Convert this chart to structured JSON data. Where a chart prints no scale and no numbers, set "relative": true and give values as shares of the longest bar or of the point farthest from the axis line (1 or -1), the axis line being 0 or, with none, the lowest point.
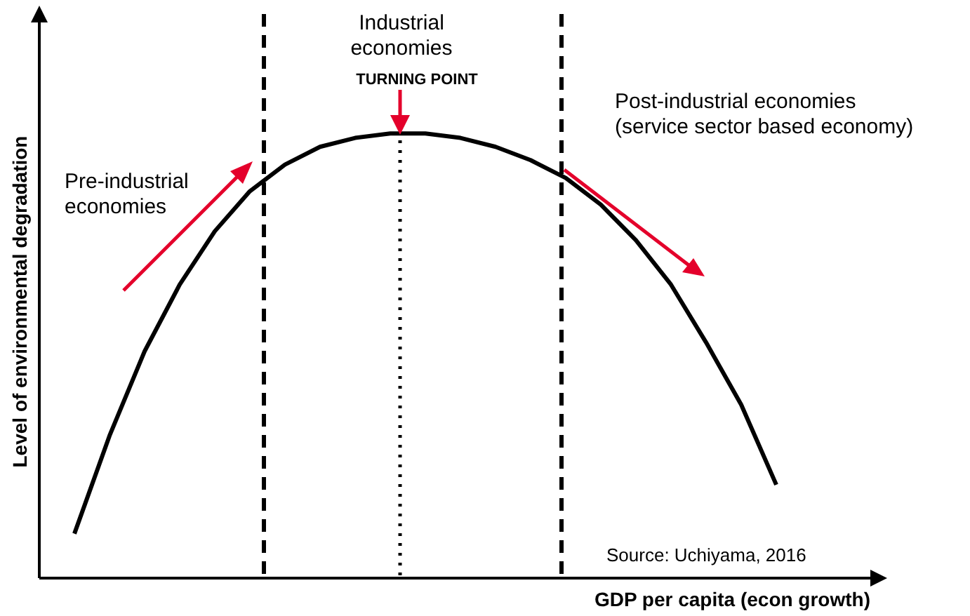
{
  "chart_data": {
    "type": "line",
    "relative": true,
    "xlabel": "GDP per capita (econ growth)",
    "ylabel": "Level of environmental degradation",
    "categories": [
      null,
      null,
      null,
      null,
      null,
      null,
      null,
      null,
      null,
      null,
      null,
      null,
      null,
      null,
      null,
      null,
      null,
      null,
      null,
      null,
      null
    ],
    "series": [
      {
        "color": "#000000",
        "values": [
          0.1,
          0.32,
          0.51,
          0.66,
          0.78,
          0.87,
          0.93,
          0.97,
          0.99,
          1.0,
          1.0,
          0.99,
          0.97,
          0.94,
          0.9,
          0.84,
          0.76,
          0.66,
          0.53,
          0.39,
          0.21
        ]
      }
    ],
    "annotations": [
      "Industrial\neconomies",
      "TURNING POINT",
      "Post-industrial economies\n(service sector based economy)",
      "Pre-industrial\neconomies",
      "Source: Uchiyama, 2016"
    ],
    "marker": "none",
    "line_style": "solid",
    "grid": false,
    "legend": false
  }
}
